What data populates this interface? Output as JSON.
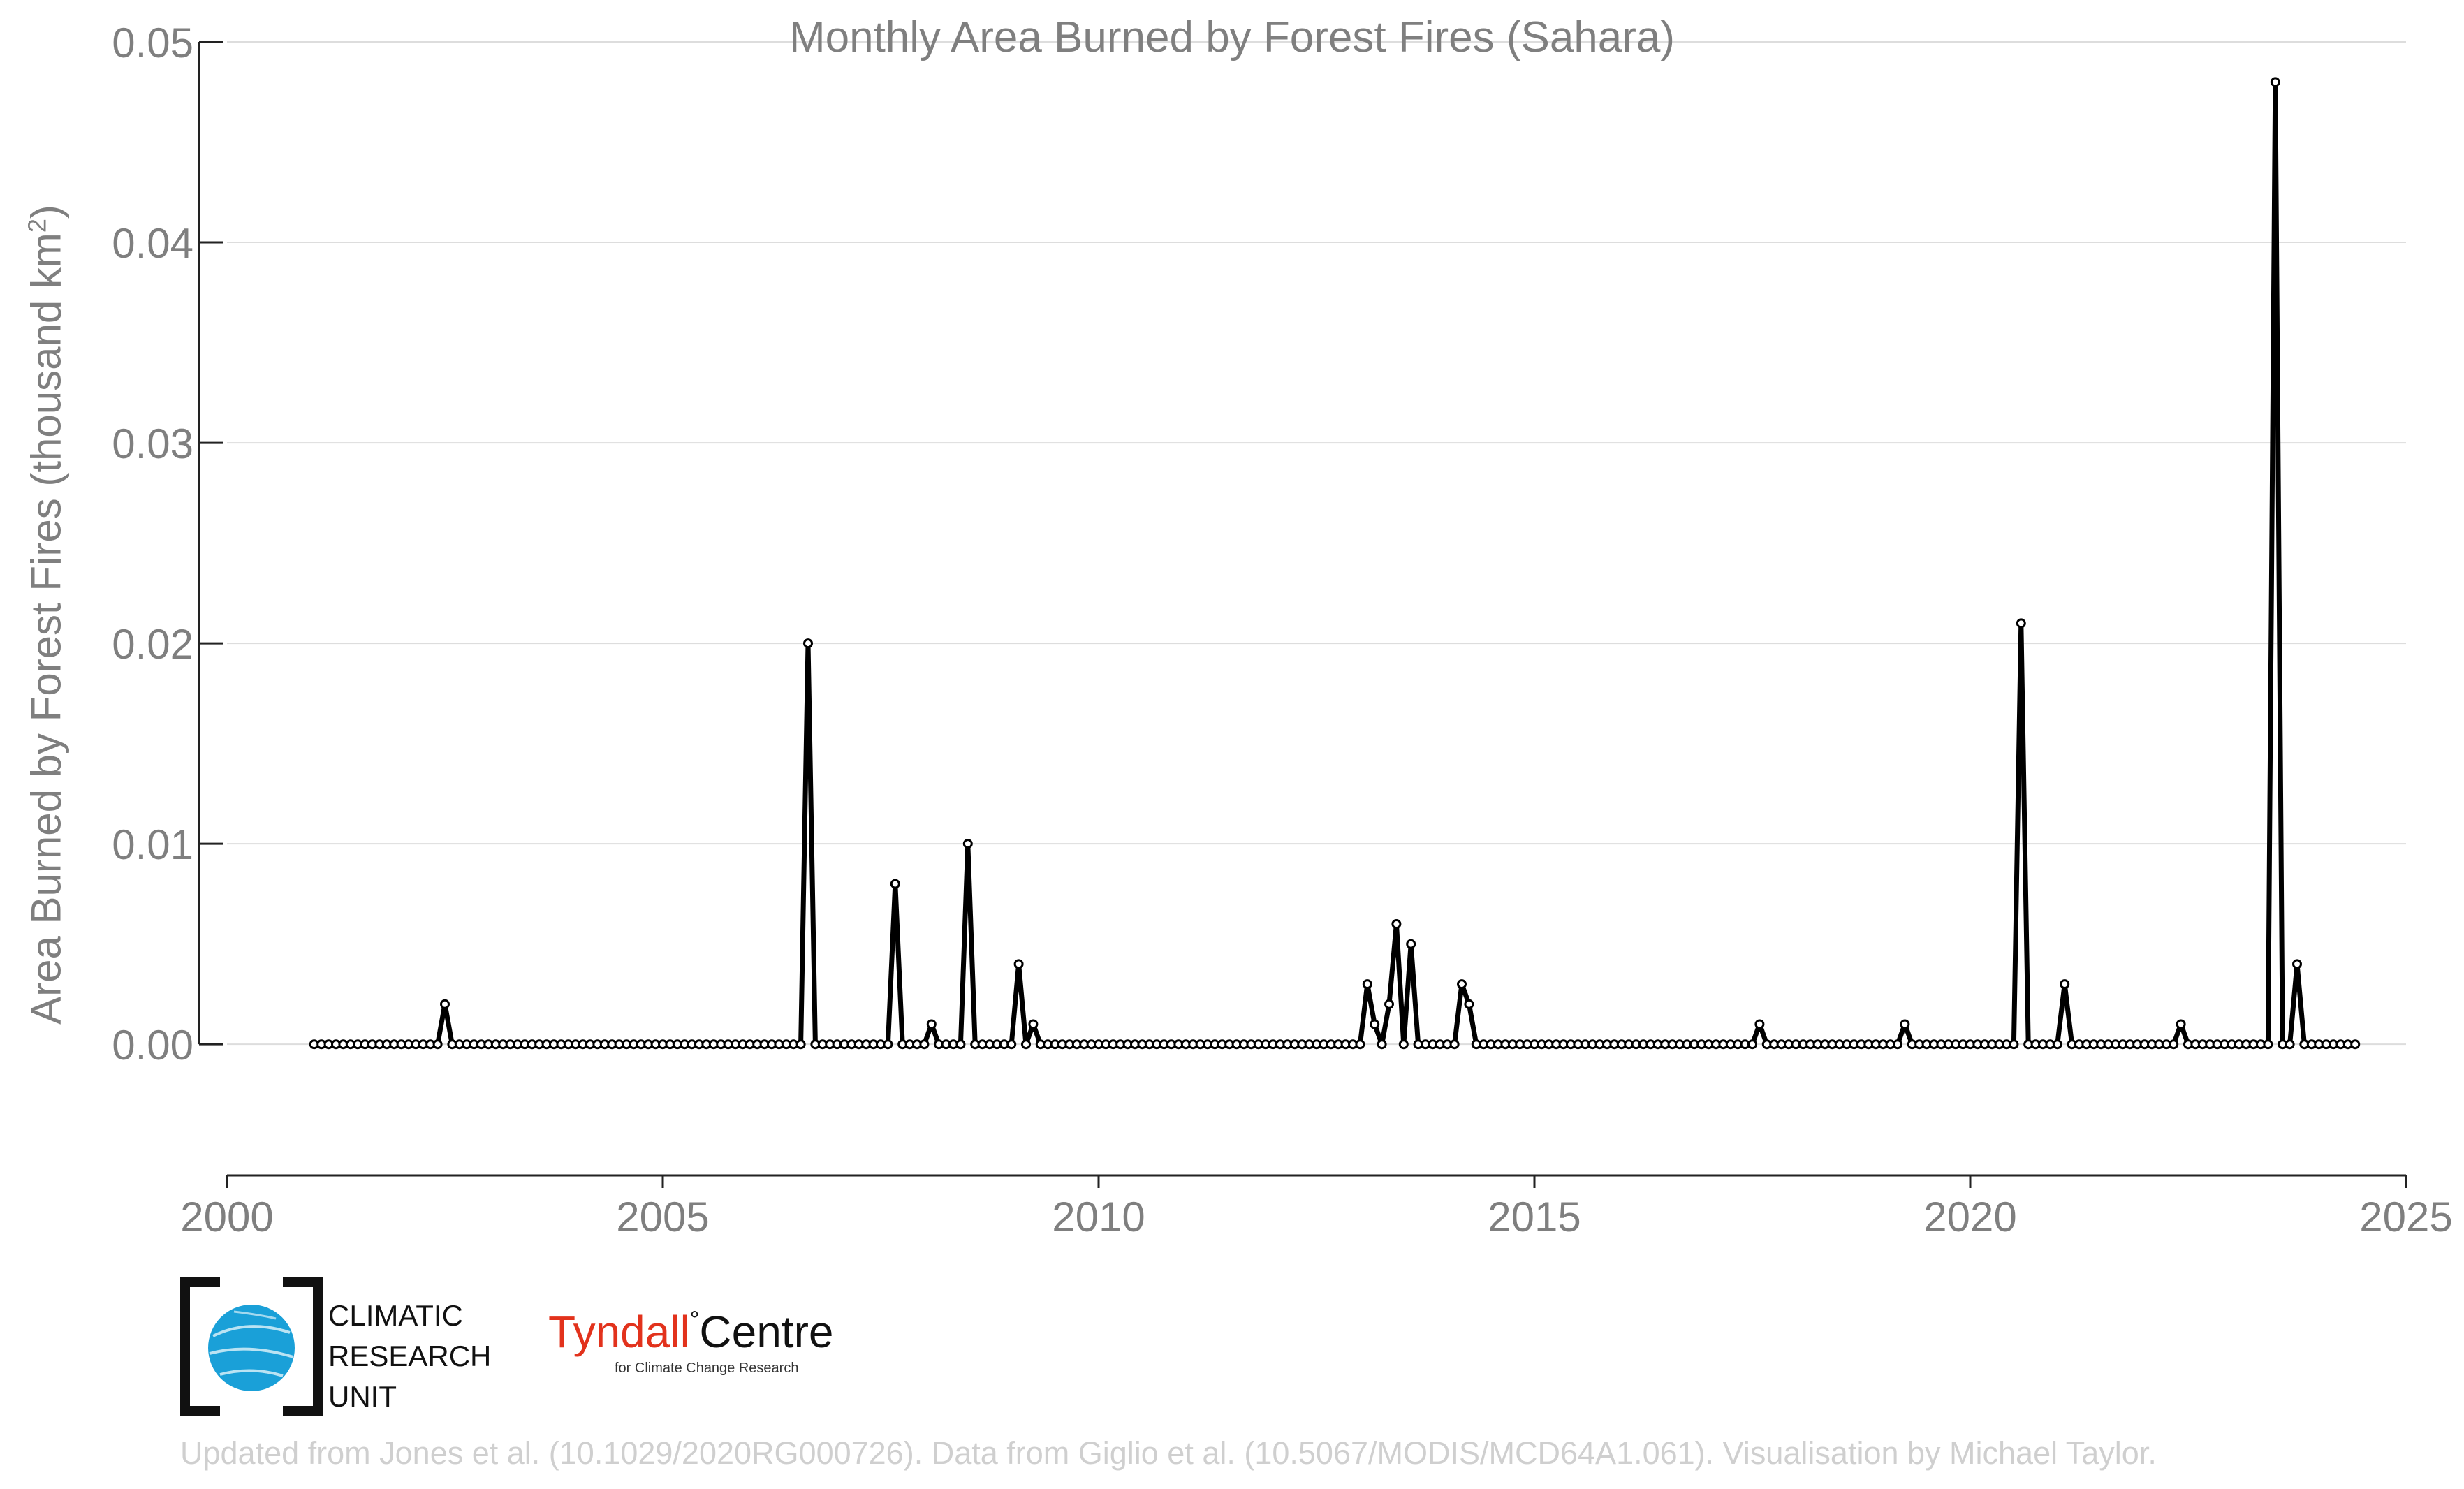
{
  "title": "Monthly Area Burned by Forest Fires (Sahara)",
  "ylabel_main": "Area Burned by Forest Fires (thousand km",
  "ylabel_sup": "2",
  "ylabel_close": ")",
  "logos": {
    "cru_lines": [
      "CLIMATIC",
      "RESEARCH",
      "UNIT"
    ],
    "tyndall_name": "Tyndall",
    "tyndall_centre": "Centre",
    "tyndall_degree": "°",
    "tyndall_sub": "for Climate Change Research"
  },
  "credit": "Updated from Jones et al. (10.1029/2020RG000726). Data from Giglio et al. (10.5067/MODIS/MCD64A1.061). Visualisation by Michael Taylor.",
  "colors": {
    "line": "#000000",
    "marker_fill": "#ffffff",
    "text": "#7f7f7f",
    "grid": "#dddddd",
    "tyndall": "#e2321c",
    "cru_blue": "#1aa0d8"
  },
  "chart_data": {
    "type": "line",
    "title": "Monthly Area Burned by Forest Fires (Sahara)",
    "xlabel": "",
    "ylabel": "Area Burned by Forest Fires (thousand km2)",
    "xlim": [
      2000,
      2025
    ],
    "ylim": [
      -0.004,
      0.05
    ],
    "xticks": [
      "2000",
      "2005",
      "2010",
      "2015",
      "2020",
      "2025"
    ],
    "yticks": [
      "0.00",
      "0.01",
      "0.02",
      "0.03",
      "0.04",
      "0.05"
    ],
    "grid": "horizontal",
    "x_start": "2001-01",
    "x_step": "1 month",
    "series": [
      {
        "values": [
          0,
          0,
          0,
          0,
          0,
          0,
          0,
          0,
          0,
          0,
          0,
          0,
          0,
          0,
          0,
          0,
          0,
          0,
          0.002,
          0,
          0,
          0,
          0,
          0,
          0,
          0,
          0,
          0,
          0,
          0,
          0,
          0,
          0,
          0,
          0,
          0,
          0,
          0,
          0,
          0,
          0,
          0,
          0,
          0,
          0,
          0,
          0,
          0,
          0,
          0,
          0,
          0,
          0,
          0,
          0,
          0,
          0,
          0,
          0,
          0,
          0,
          0,
          0,
          0,
          0,
          0,
          0,
          0,
          0.02,
          0,
          0,
          0,
          0,
          0,
          0,
          0,
          0,
          0,
          0,
          0,
          0.008,
          0,
          0,
          0,
          0,
          0.001,
          0,
          0,
          0,
          0,
          0.01,
          0,
          0,
          0,
          0,
          0,
          0,
          0.004,
          0,
          0.001,
          0,
          0,
          0,
          0,
          0,
          0,
          0,
          0,
          0,
          0,
          0,
          0,
          0,
          0,
          0,
          0,
          0,
          0,
          0,
          0,
          0,
          0,
          0,
          0,
          0,
          0,
          0,
          0,
          0,
          0,
          0,
          0,
          0,
          0,
          0,
          0,
          0,
          0,
          0,
          0,
          0,
          0,
          0,
          0,
          0,
          0.003,
          0.001,
          0,
          0.002,
          0.006,
          0,
          0.005,
          0,
          0,
          0,
          0,
          0,
          0,
          0.003,
          0.002,
          0,
          0,
          0,
          0,
          0,
          0,
          0,
          0,
          0,
          0,
          0,
          0,
          0,
          0,
          0,
          0,
          0,
          0,
          0,
          0,
          0,
          0,
          0,
          0,
          0,
          0,
          0,
          0,
          0,
          0,
          0,
          0,
          0,
          0,
          0,
          0,
          0,
          0,
          0,
          0.001,
          0,
          0,
          0,
          0,
          0,
          0,
          0,
          0,
          0,
          0,
          0,
          0,
          0,
          0,
          0,
          0,
          0,
          0,
          0,
          0.001,
          0,
          0,
          0,
          0,
          0,
          0,
          0,
          0,
          0,
          0,
          0,
          0,
          0,
          0,
          0,
          0.021,
          0,
          0,
          0,
          0,
          0,
          0.003,
          0,
          0,
          0,
          0,
          0,
          0,
          0,
          0,
          0,
          0,
          0,
          0,
          0,
          0,
          0,
          0.001,
          0,
          0,
          0,
          0,
          0,
          0,
          0,
          0,
          0,
          0,
          0,
          0,
          0.048,
          0,
          0,
          0.004,
          0,
          0,
          0,
          0,
          0,
          0,
          0,
          0
        ]
      }
    ]
  }
}
